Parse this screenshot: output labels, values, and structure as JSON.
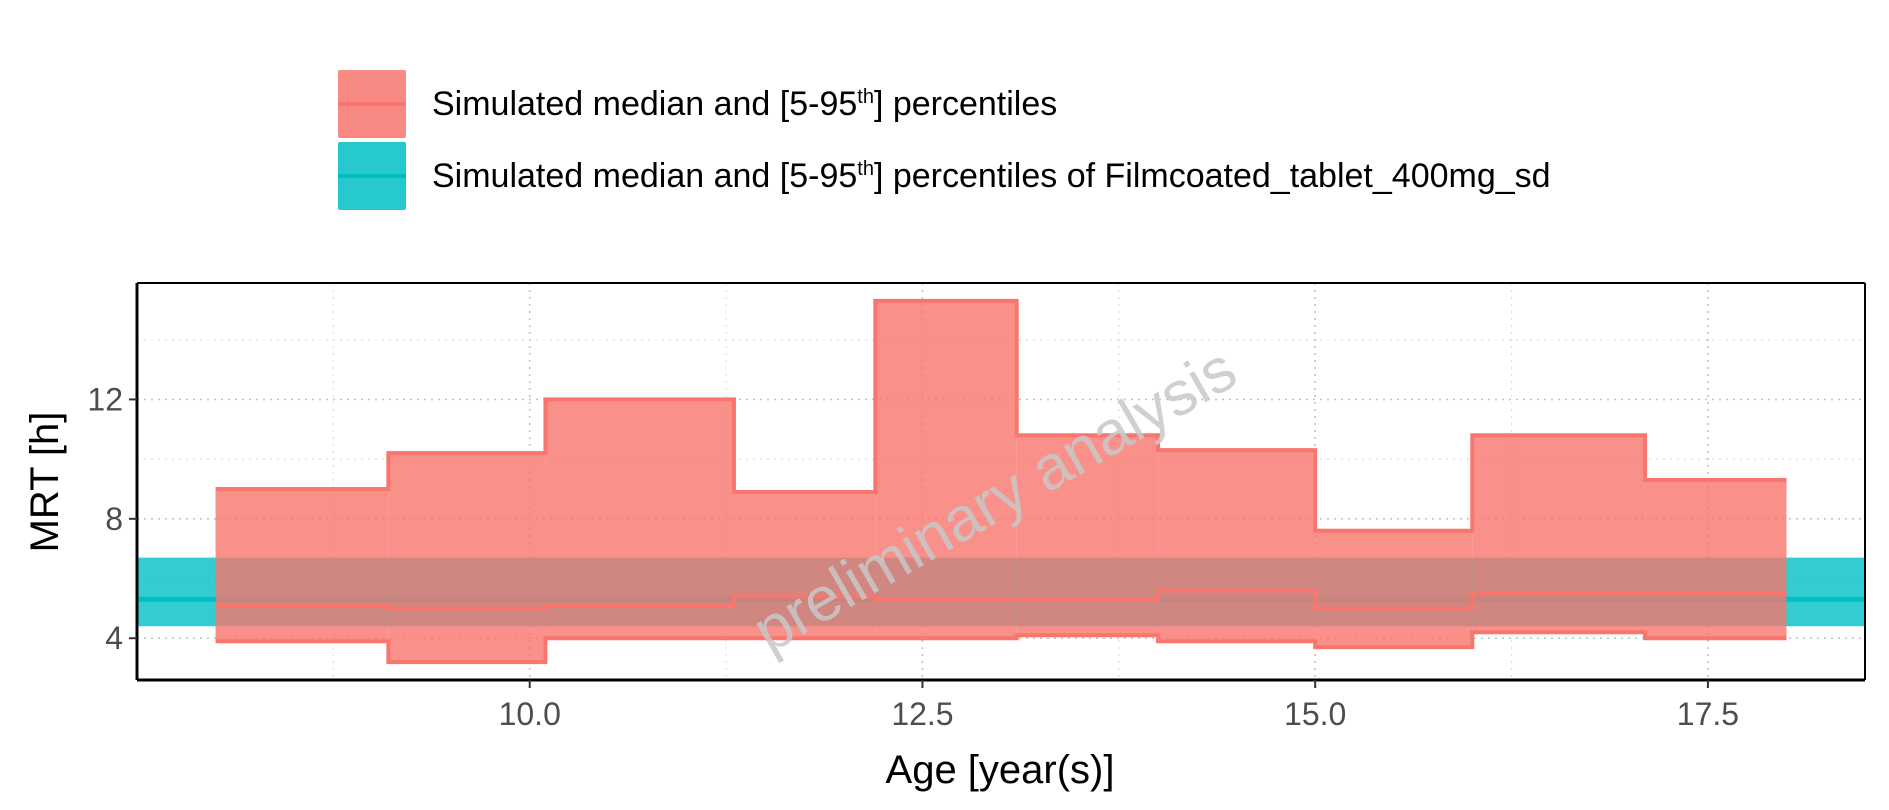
{
  "legend": {
    "items": [
      {
        "label_prefix": "Simulated median and [5-95",
        "sup": "th",
        "label_suffix": "] percentiles",
        "color": "#F8766D"
      },
      {
        "label_prefix": "Simulated median and [5-95",
        "sup": "th",
        "label_suffix": "] percentiles of Filmcoated_tablet_400mg_sd",
        "color": "#00BFC4"
      }
    ]
  },
  "watermark": "preliminary analysis",
  "chart_data": {
    "type": "area",
    "xlabel": "Age [year(s)]",
    "ylabel": "MRT [h]",
    "xlim": [
      7.5,
      18.5
    ],
    "ylim": [
      2.6,
      15.9
    ],
    "x_ticks": [
      "10.0",
      "12.5",
      "15.0",
      "17.5"
    ],
    "x_tick_values": [
      10.0,
      12.5,
      15.0,
      17.5
    ],
    "y_ticks": [
      "4",
      "8",
      "12"
    ],
    "y_tick_values": [
      4,
      8,
      12
    ],
    "grid": true,
    "legend_position": "top",
    "series": [
      {
        "name": "Simulated median and [5-95th] percentiles",
        "color": "#F8766D",
        "style": "step",
        "bins": [
          {
            "x_start": 8.0,
            "x_end": 9.1,
            "p5": 3.9,
            "median": 5.1,
            "p95": 9.0
          },
          {
            "x_start": 9.1,
            "x_end": 10.1,
            "p5": 3.2,
            "median": 5.0,
            "p95": 10.2
          },
          {
            "x_start": 10.1,
            "x_end": 11.3,
            "p5": 4.0,
            "median": 5.1,
            "p95": 12.0
          },
          {
            "x_start": 11.3,
            "x_end": 12.2,
            "p5": 4.0,
            "median": 5.4,
            "p95": 8.9
          },
          {
            "x_start": 12.2,
            "x_end": 13.1,
            "p5": 4.0,
            "median": 5.3,
            "p95": 15.3
          },
          {
            "x_start": 13.1,
            "x_end": 14.0,
            "p5": 4.1,
            "median": 5.3,
            "p95": 10.8
          },
          {
            "x_start": 14.0,
            "x_end": 15.0,
            "p5": 3.9,
            "median": 5.6,
            "p95": 10.3
          },
          {
            "x_start": 15.0,
            "x_end": 16.0,
            "p5": 3.7,
            "median": 5.0,
            "p95": 7.6
          },
          {
            "x_start": 16.0,
            "x_end": 17.1,
            "p5": 4.2,
            "median": 5.5,
            "p95": 10.8
          },
          {
            "x_start": 17.1,
            "x_end": 18.0,
            "p5": 4.0,
            "median": 5.5,
            "p95": 9.3
          }
        ]
      },
      {
        "name": "Simulated median and [5-95th] percentiles of Filmcoated_tablet_400mg_sd",
        "color": "#00BFC4",
        "style": "constant_band",
        "p5": 4.4,
        "median": 5.3,
        "p95": 6.7
      }
    ]
  }
}
